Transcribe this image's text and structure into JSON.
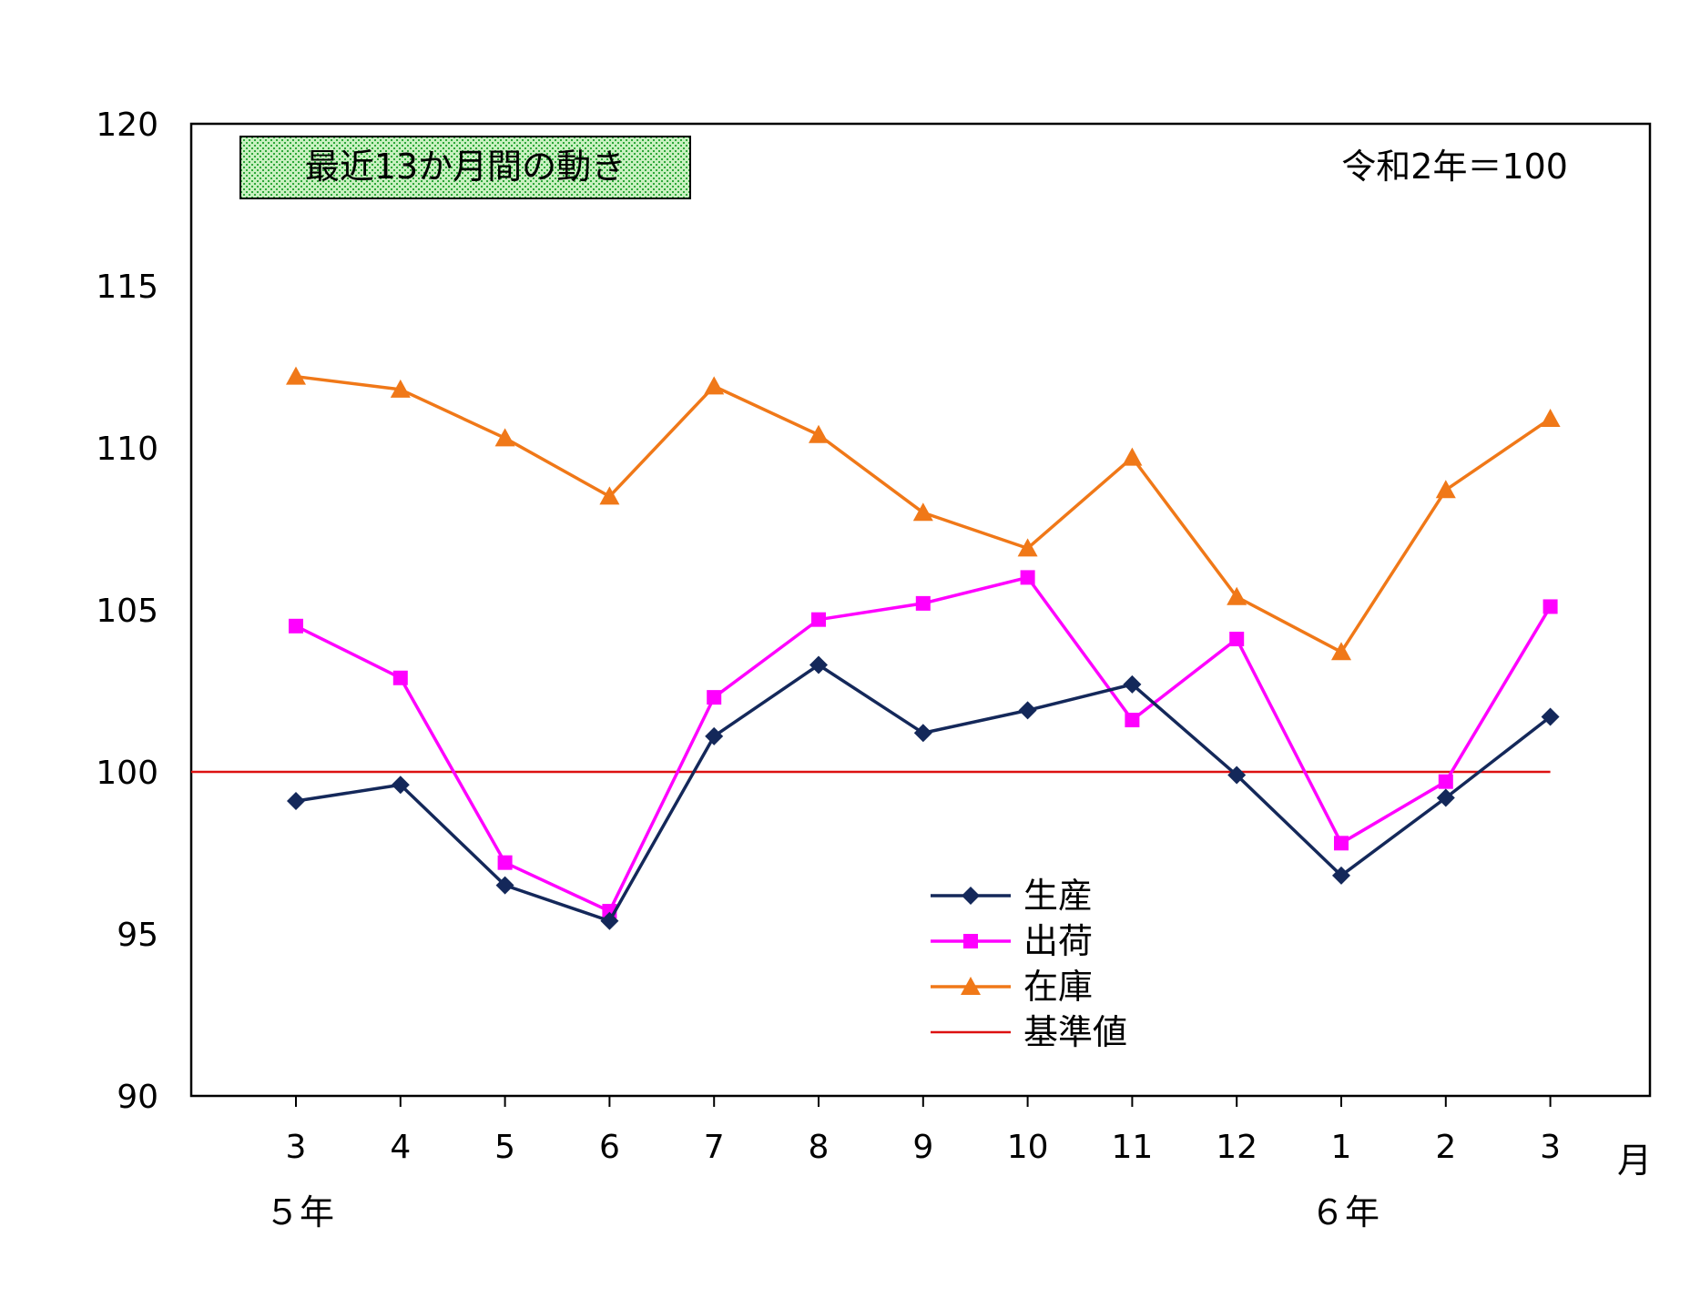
{
  "chart_data": {
    "type": "line",
    "title": "最近13か月間の動き",
    "base_note": "令和2年＝100",
    "categories": [
      "3",
      "4",
      "5",
      "6",
      "7",
      "8",
      "9",
      "10",
      "11",
      "12",
      "1",
      "2",
      "3"
    ],
    "x_unit_label": "月",
    "year_labels": [
      {
        "label": "５年",
        "at_category_index": 0
      },
      {
        "label": "６年",
        "at_category_index": 10
      }
    ],
    "ylim": [
      90,
      120
    ],
    "yticks": [
      90,
      95,
      100,
      105,
      110,
      115,
      120
    ],
    "grid": false,
    "legend_position": "bottom-center",
    "series": [
      {
        "name": "生産",
        "marker": "diamond",
        "color": "#14285a",
        "values": [
          99.1,
          99.6,
          96.5,
          95.4,
          101.1,
          103.3,
          101.2,
          101.9,
          102.7,
          99.9,
          96.8,
          99.2,
          101.7
        ]
      },
      {
        "name": "出荷",
        "marker": "square",
        "color": "#ff00ff",
        "values": [
          104.5,
          102.9,
          97.2,
          95.7,
          102.3,
          104.7,
          105.2,
          106.0,
          101.6,
          104.1,
          97.8,
          99.7,
          105.1
        ]
      },
      {
        "name": "在庫",
        "marker": "triangle",
        "color": "#f07818",
        "values": [
          112.2,
          111.8,
          110.3,
          108.5,
          111.9,
          110.4,
          108.0,
          106.9,
          109.7,
          105.4,
          103.7,
          108.7,
          110.9
        ]
      }
    ],
    "reference_line": {
      "name": "基準値",
      "value": 100,
      "color": "#dd1111"
    }
  }
}
